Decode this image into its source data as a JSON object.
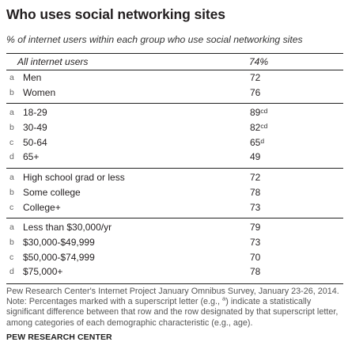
{
  "title": "Who uses social networking sites",
  "subtitle": "% of internet users within each group who use social networking sites",
  "chart_data": {
    "type": "table",
    "header": {
      "label": "All internet users",
      "value": "74%"
    },
    "groups": [
      {
        "name": "",
        "rows": [
          {
            "letter": "a",
            "label": "Men",
            "value": "72",
            "sup": ""
          },
          {
            "letter": "b",
            "label": "Women",
            "value": "76",
            "sup": ""
          }
        ]
      },
      {
        "name": "",
        "rows": [
          {
            "letter": "a",
            "label": "18-29",
            "value": "89",
            "sup": "cd"
          },
          {
            "letter": "b",
            "label": "30-49",
            "value": "82",
            "sup": "cd"
          },
          {
            "letter": "c",
            "label": "50-64",
            "value": "65",
            "sup": "d"
          },
          {
            "letter": "d",
            "label": "65+",
            "value": "49",
            "sup": ""
          }
        ]
      },
      {
        "name": "",
        "rows": [
          {
            "letter": "a",
            "label": "High school grad or less",
            "value": "72",
            "sup": ""
          },
          {
            "letter": "b",
            "label": "Some college",
            "value": "78",
            "sup": ""
          },
          {
            "letter": "c",
            "label": "College+",
            "value": "73",
            "sup": ""
          }
        ]
      },
      {
        "name": "",
        "rows": [
          {
            "letter": "a",
            "label": "Less than $30,000/yr",
            "value": "79",
            "sup": ""
          },
          {
            "letter": "b",
            "label": "$30,000-$49,999",
            "value": "73",
            "sup": ""
          },
          {
            "letter": "c",
            "label": "$50,000-$74,999",
            "value": "70",
            "sup": ""
          },
          {
            "letter": "d",
            "label": "$75,000+",
            "value": "78",
            "sup": ""
          }
        ]
      }
    ]
  },
  "footnote": {
    "line1": "Pew Research Center's Internet Project January Omnibus Survey, January 23-26, 2014.",
    "line2_pre": "Note: Percentages marked with a superscript letter (e.g., ",
    "line2_sup": "a",
    "line2_post": ") indicate a statistically significant difference between that row and the row designated by that superscript letter, among categories of each demographic characteristic (e.g., age)."
  },
  "brand": "PEW RESEARCH CENTER"
}
